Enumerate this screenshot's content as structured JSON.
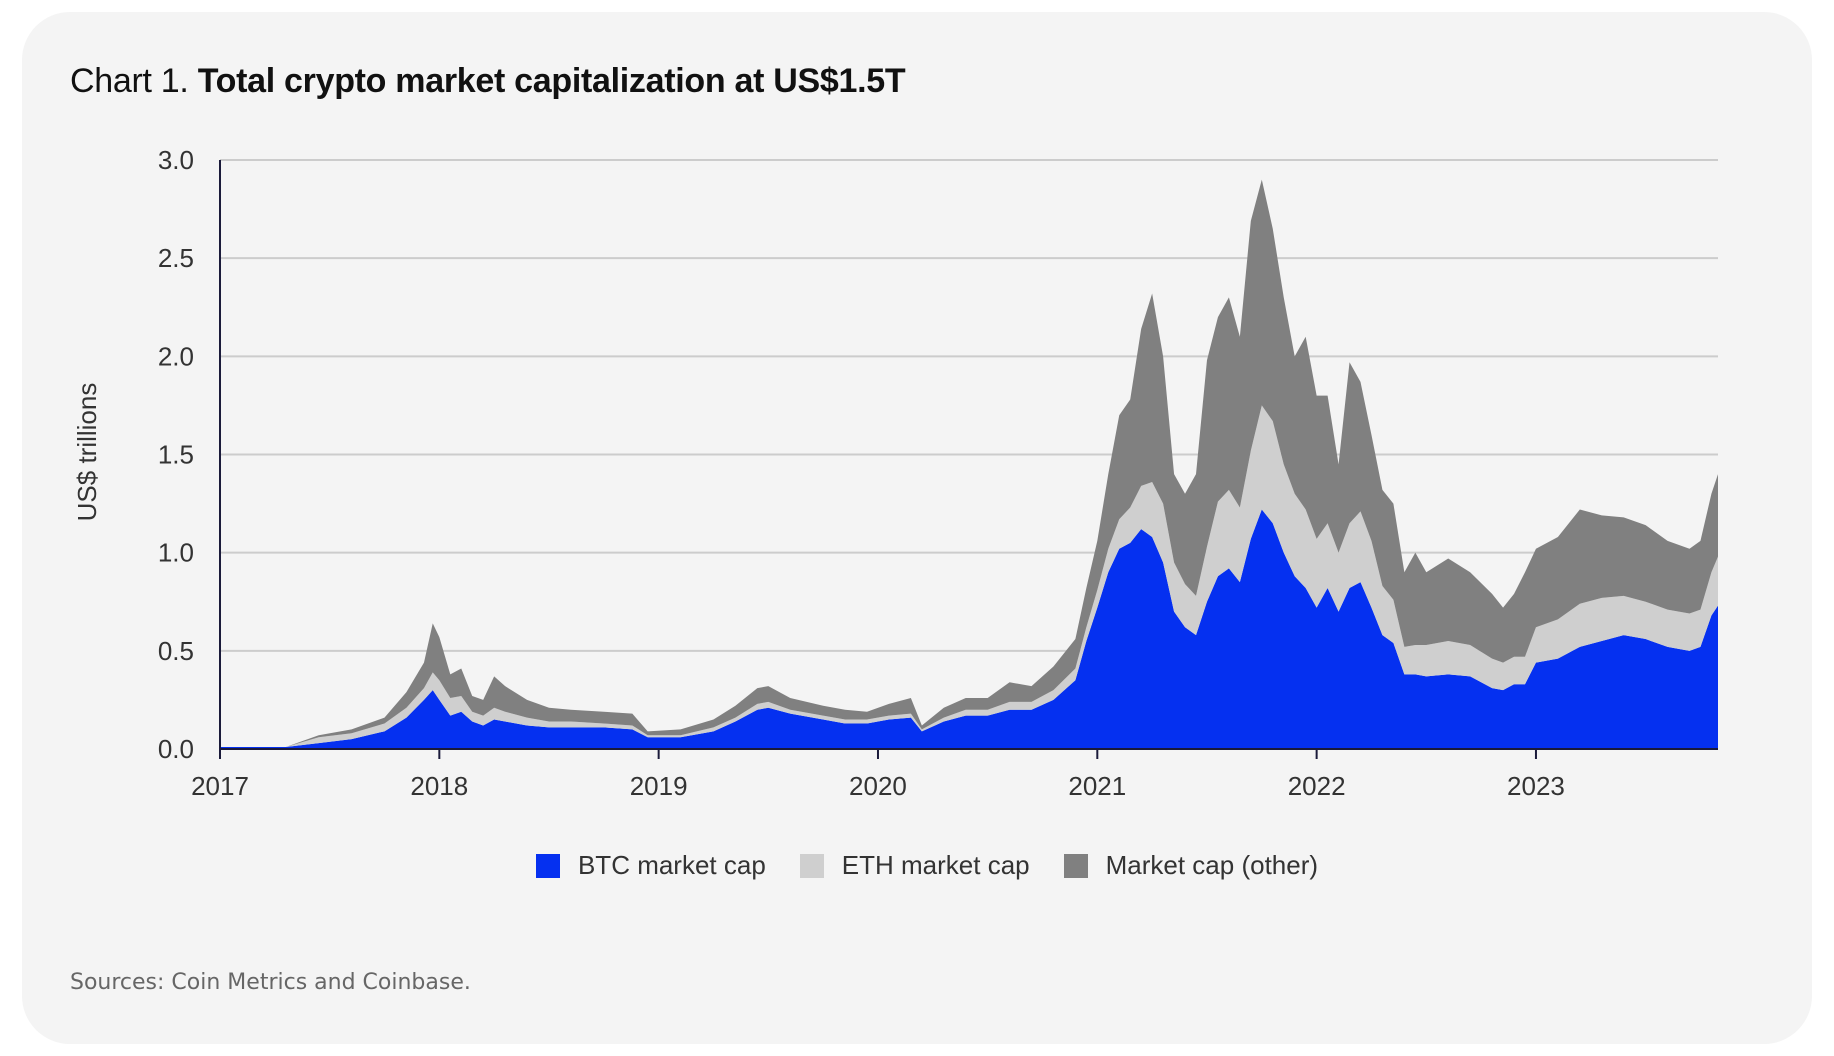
{
  "title": {
    "prefix": "Chart 1.",
    "main": "Total crypto market capitalization at US$1.5T"
  },
  "source": "Sources: Coin Metrics and Coinbase.",
  "colors": {
    "btc": "#0530f0",
    "eth": "#cfcfcf",
    "other": "#808080",
    "card": "#f4f4f4",
    "grid": "#cccccc",
    "axis": "#1a1a3a"
  },
  "chart_data": {
    "type": "area",
    "stacked": true,
    "ylabel": "US$ trillions",
    "xlabel": "",
    "ylim": [
      0,
      3.0
    ],
    "xlim": [
      2017.0,
      2023.83
    ],
    "yticks": [
      "0.0",
      "0.5",
      "1.0",
      "1.5",
      "2.0",
      "2.5",
      "3.0"
    ],
    "xticks": [
      "2017",
      "2018",
      "2019",
      "2020",
      "2021",
      "2022",
      "2023"
    ],
    "grid": true,
    "legend_position": "bottom",
    "x": [
      2017.0,
      2017.3,
      2017.45,
      2017.6,
      2017.75,
      2017.85,
      2017.93,
      2017.97,
      2018.0,
      2018.05,
      2018.1,
      2018.15,
      2018.2,
      2018.25,
      2018.3,
      2018.4,
      2018.5,
      2018.6,
      2018.75,
      2018.88,
      2018.95,
      2019.1,
      2019.25,
      2019.35,
      2019.45,
      2019.5,
      2019.6,
      2019.75,
      2019.85,
      2019.95,
      2020.05,
      2020.15,
      2020.2,
      2020.3,
      2020.4,
      2020.5,
      2020.6,
      2020.7,
      2020.8,
      2020.9,
      2020.95,
      2021.0,
      2021.05,
      2021.1,
      2021.15,
      2021.2,
      2021.25,
      2021.3,
      2021.35,
      2021.4,
      2021.45,
      2021.5,
      2021.55,
      2021.6,
      2021.65,
      2021.7,
      2021.75,
      2021.8,
      2021.85,
      2021.9,
      2021.95,
      2022.0,
      2022.05,
      2022.1,
      2022.15,
      2022.2,
      2022.25,
      2022.3,
      2022.35,
      2022.4,
      2022.45,
      2022.5,
      2022.6,
      2022.7,
      2022.8,
      2022.85,
      2022.9,
      2022.95,
      2023.0,
      2023.1,
      2023.2,
      2023.3,
      2023.4,
      2023.5,
      2023.6,
      2023.7,
      2023.75,
      2023.8,
      2023.83
    ],
    "series": [
      {
        "name": "BTC market cap",
        "values": [
          0.01,
          0.01,
          0.03,
          0.05,
          0.09,
          0.16,
          0.25,
          0.3,
          0.25,
          0.17,
          0.19,
          0.14,
          0.12,
          0.15,
          0.14,
          0.12,
          0.11,
          0.11,
          0.11,
          0.1,
          0.06,
          0.06,
          0.09,
          0.14,
          0.2,
          0.21,
          0.18,
          0.15,
          0.13,
          0.13,
          0.15,
          0.16,
          0.09,
          0.14,
          0.17,
          0.17,
          0.2,
          0.2,
          0.25,
          0.35,
          0.55,
          0.72,
          0.9,
          1.02,
          1.05,
          1.12,
          1.08,
          0.95,
          0.7,
          0.62,
          0.58,
          0.75,
          0.88,
          0.92,
          0.85,
          1.07,
          1.22,
          1.15,
          1.0,
          0.88,
          0.82,
          0.72,
          0.82,
          0.7,
          0.82,
          0.85,
          0.72,
          0.58,
          0.54,
          0.38,
          0.38,
          0.37,
          0.38,
          0.37,
          0.31,
          0.3,
          0.33,
          0.33,
          0.44,
          0.46,
          0.52,
          0.55,
          0.58,
          0.56,
          0.52,
          0.5,
          0.52,
          0.68,
          0.73
        ]
      },
      {
        "name": "ETH market cap",
        "values": [
          0.0,
          0.0,
          0.03,
          0.03,
          0.04,
          0.05,
          0.06,
          0.09,
          0.1,
          0.09,
          0.08,
          0.05,
          0.05,
          0.06,
          0.05,
          0.04,
          0.03,
          0.03,
          0.02,
          0.02,
          0.01,
          0.01,
          0.02,
          0.02,
          0.03,
          0.03,
          0.02,
          0.02,
          0.02,
          0.02,
          0.02,
          0.02,
          0.01,
          0.02,
          0.03,
          0.03,
          0.04,
          0.04,
          0.05,
          0.06,
          0.07,
          0.09,
          0.12,
          0.15,
          0.18,
          0.22,
          0.28,
          0.3,
          0.25,
          0.22,
          0.2,
          0.28,
          0.38,
          0.4,
          0.38,
          0.45,
          0.53,
          0.52,
          0.45,
          0.42,
          0.4,
          0.35,
          0.33,
          0.3,
          0.33,
          0.36,
          0.34,
          0.25,
          0.22,
          0.14,
          0.15,
          0.16,
          0.17,
          0.16,
          0.15,
          0.14,
          0.14,
          0.14,
          0.18,
          0.2,
          0.22,
          0.22,
          0.2,
          0.19,
          0.19,
          0.19,
          0.19,
          0.22,
          0.25
        ]
      },
      {
        "name": "Market cap (other)",
        "values": [
          0.0,
          0.0,
          0.01,
          0.02,
          0.03,
          0.08,
          0.13,
          0.25,
          0.22,
          0.12,
          0.14,
          0.08,
          0.08,
          0.16,
          0.13,
          0.09,
          0.07,
          0.06,
          0.06,
          0.06,
          0.02,
          0.03,
          0.04,
          0.06,
          0.08,
          0.08,
          0.06,
          0.05,
          0.05,
          0.04,
          0.06,
          0.08,
          0.02,
          0.05,
          0.06,
          0.06,
          0.1,
          0.08,
          0.12,
          0.15,
          0.2,
          0.25,
          0.38,
          0.53,
          0.55,
          0.8,
          0.96,
          0.75,
          0.45,
          0.46,
          0.62,
          0.95,
          0.94,
          0.98,
          0.87,
          1.17,
          1.15,
          0.98,
          0.85,
          0.7,
          0.88,
          0.73,
          0.65,
          0.45,
          0.82,
          0.66,
          0.54,
          0.49,
          0.49,
          0.38,
          0.47,
          0.37,
          0.42,
          0.37,
          0.33,
          0.28,
          0.32,
          0.43,
          0.4,
          0.42,
          0.48,
          0.42,
          0.4,
          0.39,
          0.35,
          0.33,
          0.35,
          0.4,
          0.42
        ]
      }
    ]
  }
}
